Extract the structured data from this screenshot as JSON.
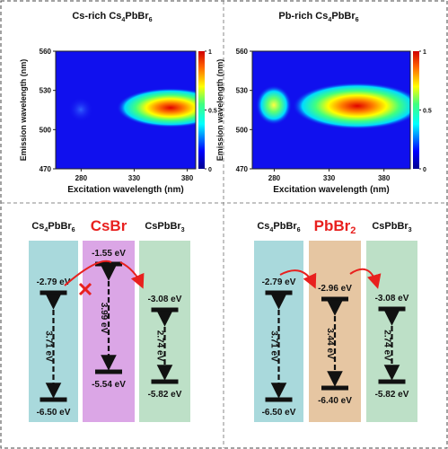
{
  "panels": [
    {
      "title": [
        {
          "text": "Cs-rich Cs"
        },
        {
          "text": "4",
          "sub": true
        },
        {
          "text": "PbBr"
        },
        {
          "text": "6",
          "sub": true
        }
      ],
      "x_label": "Excitation wavelength (nm)",
      "y_label": "Emission wavelength (nm)",
      "xlim": [
        256,
        388
      ],
      "xticks": [
        280,
        330,
        380
      ],
      "ylim": [
        470,
        560
      ],
      "yticks": [
        470,
        500,
        530,
        560
      ],
      "colorbar_ticks": [
        0,
        0.5,
        1
      ]
    },
    {
      "title": [
        {
          "text": "Pb-rich Cs"
        },
        {
          "text": "4",
          "sub": true
        },
        {
          "text": "PbBr"
        },
        {
          "text": "6",
          "sub": true
        }
      ],
      "x_label": "Excitation wavelength (nm)",
      "y_label": "Emission wavelength (nm)",
      "xlim": [
        260,
        404
      ],
      "xticks": [
        280,
        330,
        380
      ],
      "ylim": [
        470,
        560
      ],
      "yticks": [
        470,
        500,
        530,
        560
      ],
      "colorbar_ticks": [
        0,
        0.5,
        1
      ]
    }
  ],
  "diagrams": [
    {
      "materials": [
        {
          "name": [
            {
              "text": "Cs"
            },
            {
              "text": "4",
              "sub": true
            },
            {
              "text": "PbBr"
            },
            {
              "text": "6",
              "sub": true
            }
          ],
          "highlight": false,
          "color": "#a9d9dc",
          "top": "-2.79 eV",
          "bottom": "-6.50 eV",
          "gap": "3.71 eV"
        },
        {
          "name": [
            {
              "text": "CsBr"
            }
          ],
          "highlight": true,
          "color": "#dba6e6",
          "top": "-1.55 eV",
          "bottom": "-5.54 eV",
          "gap": "3.99 eV"
        },
        {
          "name": [
            {
              "text": "CsPbBr"
            },
            {
              "text": "3",
              "sub": true
            }
          ],
          "highlight": false,
          "color": "#bde0c7",
          "top": "-3.08 eV",
          "bottom": "-5.82 eV",
          "gap": "2.74 eV"
        }
      ]
    },
    {
      "materials": [
        {
          "name": [
            {
              "text": "Cs"
            },
            {
              "text": "4",
              "sub": true
            },
            {
              "text": "PbBr"
            },
            {
              "text": "6",
              "sub": true
            }
          ],
          "highlight": false,
          "color": "#a9d9dc",
          "top": "-2.79 eV",
          "bottom": "-6.50 eV",
          "gap": "3.71 eV"
        },
        {
          "name": [
            {
              "text": "PbBr"
            },
            {
              "text": "2",
              "sub": true
            }
          ],
          "highlight": true,
          "color": "#e6c6a2",
          "top": "-2.96 eV",
          "bottom": "-6.40 eV",
          "gap": "3.44 eV"
        },
        {
          "name": [
            {
              "text": "CsPbBr"
            },
            {
              "text": "3",
              "sub": true
            }
          ],
          "highlight": false,
          "color": "#bde0c7",
          "top": "-3.08 eV",
          "bottom": "-5.82 eV",
          "gap": "2.74 eV"
        }
      ]
    }
  ]
}
